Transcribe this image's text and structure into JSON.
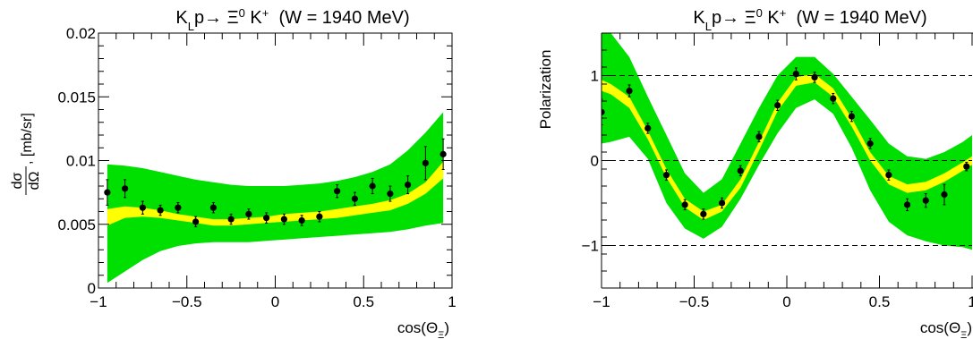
{
  "chart_data": [
    {
      "type": "scatter",
      "title": "K_Lp→ Ξ⁰ K⁺ (W = 1940 MeV)",
      "title_parts": {
        "a": "K",
        "a_sub": "L",
        "b": "p→ Ξ",
        "b_sup": "0",
        "c": " K",
        "c_sup": "+",
        "d": "  (W = 1940 MeV)"
      },
      "xlabel": "cos(Θ_Ξ)",
      "xlabel_parts": {
        "main": "cos(Θ",
        "sub": "Ξ",
        "close": ")"
      },
      "ylabel": "dσ/dΩ, [mb/sr]",
      "ylabel_parts": {
        "num": "dσ",
        "den": "dΩ",
        "unit": ", [mb/sr]"
      },
      "xlim": [
        -1,
        1
      ],
      "ylim": [
        0,
        0.02
      ],
      "xticks": [
        -1,
        -0.5,
        0,
        0.5,
        1
      ],
      "xtick_labels": [
        "−1",
        "−0.5",
        "0",
        "0.5",
        "1"
      ],
      "yticks": [
        0,
        0.005,
        0.01,
        0.015,
        0.02
      ],
      "ytick_labels": [
        "0",
        "0.005",
        "0.01",
        "0.015",
        "0.02"
      ],
      "grid": false,
      "colors": {
        "band_outer": "#00e000",
        "band_inner": "#ffff00",
        "points": "#000000"
      },
      "band_x": [
        -0.95,
        -0.85,
        -0.75,
        -0.65,
        -0.55,
        -0.45,
        -0.35,
        -0.25,
        -0.15,
        -0.05,
        0.05,
        0.15,
        0.25,
        0.35,
        0.45,
        0.55,
        0.65,
        0.75,
        0.85,
        0.95
      ],
      "band_outer_high": [
        0.0097,
        0.0096,
        0.0094,
        0.0091,
        0.0088,
        0.0085,
        0.0083,
        0.0081,
        0.008,
        0.008,
        0.008,
        0.0081,
        0.0082,
        0.0084,
        0.0087,
        0.0091,
        0.0097,
        0.0108,
        0.0122,
        0.0138
      ],
      "band_outer_low": [
        0.0004,
        0.0013,
        0.0022,
        0.0029,
        0.0033,
        0.0035,
        0.0036,
        0.0036,
        0.0036,
        0.0037,
        0.0038,
        0.0039,
        0.004,
        0.0041,
        0.0042,
        0.0043,
        0.0044,
        0.0046,
        0.0049,
        0.0051
      ],
      "band_inner_high": [
        0.0062,
        0.0064,
        0.0063,
        0.0061,
        0.0058,
        0.0056,
        0.0054,
        0.0054,
        0.0055,
        0.0056,
        0.0058,
        0.0059,
        0.006,
        0.0062,
        0.0064,
        0.0066,
        0.0069,
        0.0074,
        0.0083,
        0.0099
      ],
      "band_inner_low": [
        0.0049,
        0.0055,
        0.0056,
        0.0055,
        0.0053,
        0.0051,
        0.0049,
        0.0049,
        0.005,
        0.0051,
        0.0052,
        0.0053,
        0.0054,
        0.0055,
        0.0057,
        0.0059,
        0.0061,
        0.0066,
        0.0074,
        0.0086
      ],
      "points": [
        {
          "x": -0.95,
          "y": 0.0075,
          "err": 0.001
        },
        {
          "x": -0.85,
          "y": 0.0078,
          "err": 0.0007
        },
        {
          "x": -0.75,
          "y": 0.0063,
          "err": 0.0005
        },
        {
          "x": -0.65,
          "y": 0.0061,
          "err": 0.0004
        },
        {
          "x": -0.55,
          "y": 0.0063,
          "err": 0.0004
        },
        {
          "x": -0.45,
          "y": 0.0052,
          "err": 0.0004
        },
        {
          "x": -0.35,
          "y": 0.0063,
          "err": 0.0004
        },
        {
          "x": -0.25,
          "y": 0.0054,
          "err": 0.0004
        },
        {
          "x": -0.15,
          "y": 0.0058,
          "err": 0.0004
        },
        {
          "x": -0.05,
          "y": 0.0055,
          "err": 0.0004
        },
        {
          "x": 0.05,
          "y": 0.0054,
          "err": 0.0004
        },
        {
          "x": 0.15,
          "y": 0.0053,
          "err": 0.0004
        },
        {
          "x": 0.25,
          "y": 0.0056,
          "err": 0.0004
        },
        {
          "x": 0.35,
          "y": 0.0076,
          "err": 0.0005
        },
        {
          "x": 0.45,
          "y": 0.007,
          "err": 0.0005
        },
        {
          "x": 0.55,
          "y": 0.008,
          "err": 0.0006
        },
        {
          "x": 0.65,
          "y": 0.0074,
          "err": 0.0006
        },
        {
          "x": 0.75,
          "y": 0.0081,
          "err": 0.0007
        },
        {
          "x": 0.85,
          "y": 0.0098,
          "err": 0.0013
        },
        {
          "x": 0.95,
          "y": 0.0105,
          "err": 0.0012
        }
      ]
    },
    {
      "type": "scatter",
      "title": "K_Lp→ Ξ⁰ K⁺ (W = 1940 MeV)",
      "title_parts": {
        "a": "K",
        "a_sub": "L",
        "b": "p→ Ξ",
        "b_sup": "0",
        "c": " K",
        "c_sup": "+",
        "d": "  (W = 1940 MeV)"
      },
      "xlabel": "cos(Θ_Ξ)",
      "xlabel_parts": {
        "main": "cos(Θ",
        "sub": "Ξ",
        "close": ")"
      },
      "ylabel": "Polarization",
      "xlim": [
        -1,
        1
      ],
      "ylim": [
        -1.5,
        1.5
      ],
      "xticks": [
        -1,
        -0.5,
        0,
        0.5,
        1
      ],
      "xtick_labels": [
        "−1",
        "−0.5",
        "0",
        "0.5",
        "1"
      ],
      "yticks": [
        -1,
        0,
        1
      ],
      "ytick_labels": [
        "−1",
        "0",
        "1"
      ],
      "reference_lines": [
        -1,
        0,
        1
      ],
      "grid": false,
      "colors": {
        "band_outer": "#00e000",
        "band_inner": "#ffff00",
        "points": "#000000"
      },
      "band_x": [
        -1.0,
        -0.95,
        -0.85,
        -0.75,
        -0.65,
        -0.55,
        -0.45,
        -0.35,
        -0.25,
        -0.15,
        -0.05,
        0.05,
        0.15,
        0.25,
        0.35,
        0.45,
        0.55,
        0.65,
        0.75,
        0.85,
        0.95,
        1.0
      ],
      "band_outer_high": [
        1.5,
        1.5,
        1.22,
        0.75,
        0.3,
        -0.15,
        -0.38,
        -0.22,
        0.2,
        0.62,
        1.0,
        1.22,
        1.22,
        1.02,
        0.75,
        0.48,
        0.2,
        0.05,
        0.02,
        0.1,
        0.22,
        0.3
      ],
      "band_outer_low": [
        0.2,
        0.22,
        0.28,
        0.02,
        -0.5,
        -0.8,
        -0.92,
        -0.78,
        -0.45,
        -0.05,
        0.32,
        0.62,
        0.72,
        0.55,
        0.15,
        -0.35,
        -0.72,
        -0.88,
        -0.95,
        -1.0,
        -1.02,
        -1.05
      ],
      "band_inner_high": [
        0.95,
        0.9,
        0.75,
        0.35,
        -0.1,
        -0.45,
        -0.6,
        -0.52,
        -0.22,
        0.22,
        0.68,
        0.98,
        1.02,
        0.85,
        0.5,
        0.1,
        -0.18,
        -0.28,
        -0.25,
        -0.15,
        -0.02,
        0.05
      ],
      "band_inner_low": [
        0.82,
        0.78,
        0.62,
        0.25,
        -0.2,
        -0.55,
        -0.7,
        -0.6,
        -0.32,
        0.12,
        0.58,
        0.88,
        0.92,
        0.75,
        0.4,
        0.0,
        -0.28,
        -0.38,
        -0.35,
        -0.25,
        -0.12,
        -0.05
      ],
      "points": [
        {
          "x": -1.0,
          "y": 0.57,
          "err": 0.15
        },
        {
          "x": -0.85,
          "y": 0.82,
          "err": 0.07
        },
        {
          "x": -0.75,
          "y": 0.38,
          "err": 0.06
        },
        {
          "x": -0.65,
          "y": -0.17,
          "err": 0.06
        },
        {
          "x": -0.55,
          "y": -0.52,
          "err": 0.06
        },
        {
          "x": -0.45,
          "y": -0.63,
          "err": 0.06
        },
        {
          "x": -0.35,
          "y": -0.5,
          "err": 0.06
        },
        {
          "x": -0.25,
          "y": -0.12,
          "err": 0.06
        },
        {
          "x": -0.15,
          "y": 0.28,
          "err": 0.06
        },
        {
          "x": -0.05,
          "y": 0.65,
          "err": 0.06
        },
        {
          "x": 0.05,
          "y": 1.02,
          "err": 0.07
        },
        {
          "x": 0.15,
          "y": 0.98,
          "err": 0.06
        },
        {
          "x": 0.25,
          "y": 0.73,
          "err": 0.06
        },
        {
          "x": 0.35,
          "y": 0.52,
          "err": 0.06
        },
        {
          "x": 0.45,
          "y": 0.2,
          "err": 0.06
        },
        {
          "x": 0.55,
          "y": -0.17,
          "err": 0.06
        },
        {
          "x": 0.65,
          "y": -0.52,
          "err": 0.07
        },
        {
          "x": 0.75,
          "y": -0.47,
          "err": 0.08
        },
        {
          "x": 0.85,
          "y": -0.4,
          "err": 0.12
        },
        {
          "x": 0.97,
          "y": -0.07,
          "err": 0.05
        }
      ]
    }
  ]
}
